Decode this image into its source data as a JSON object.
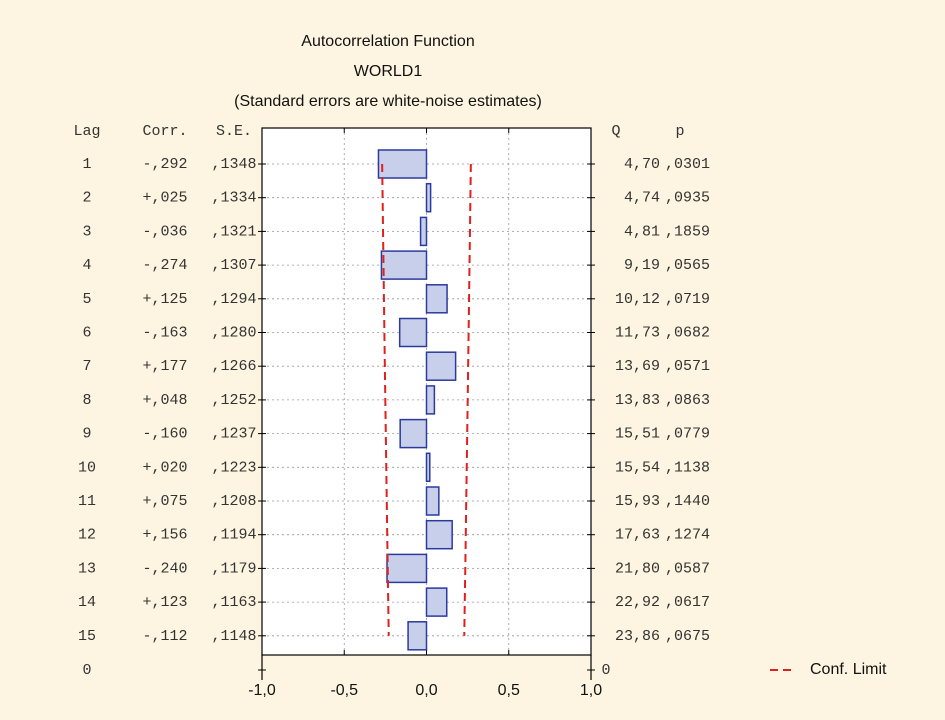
{
  "chart_data": {
    "type": "bar",
    "title": "Autocorrelation Function",
    "subtitle": "WORLD1",
    "note": "(Standard errors are white-noise estimates)",
    "headers": {
      "lag": "Lag",
      "corr": "Corr.",
      "se": "S.E.",
      "q": "Q",
      "p": "p"
    },
    "categories": [
      "1",
      "2",
      "3",
      "4",
      "5",
      "6",
      "7",
      "8",
      "9",
      "10",
      "11",
      "12",
      "13",
      "14",
      "15"
    ],
    "end_label": "0",
    "values": [
      -0.292,
      0.025,
      -0.036,
      -0.274,
      0.125,
      -0.163,
      0.177,
      0.048,
      -0.16,
      0.02,
      0.075,
      0.156,
      -0.24,
      0.123,
      -0.112
    ],
    "value_labels": [
      "-,292",
      "+,025",
      "-,036",
      "-,274",
      "+,125",
      "-,163",
      "+,177",
      "+,048",
      "-,160",
      "+,020",
      "+,075",
      "+,156",
      "-,240",
      "+,123",
      "-,112"
    ],
    "color": "#c8cfea",
    "edge_color": "#2b3a9e",
    "se": {
      "values": [
        0.1348,
        0.1334,
        0.1321,
        0.1307,
        0.1294,
        0.128,
        0.1266,
        0.1252,
        0.1237,
        0.1223,
        0.1208,
        0.1194,
        0.1179,
        0.1163,
        0.1148
      ],
      "value_labels": [
        ",1348",
        ",1334",
        ",1321",
        ",1307",
        ",1294",
        ",1280",
        ",1266",
        ",1252",
        ",1237",
        ",1223",
        ",1208",
        ",1194",
        ",1179",
        ",1163",
        ",1148"
      ]
    },
    "q": {
      "values": [
        4.7,
        4.74,
        4.81,
        9.19,
        10.12,
        11.73,
        13.69,
        13.83,
        15.51,
        15.54,
        15.93,
        17.63,
        21.8,
        22.92,
        23.86
      ],
      "value_labels": [
        "4,70",
        "4,74",
        "4,81",
        "9,19",
        "10,12",
        "11,73",
        "13,69",
        "13,83",
        "15,51",
        "15,54",
        "15,93",
        "17,63",
        "21,80",
        "22,92",
        "23,86"
      ]
    },
    "p": {
      "values": [
        0.0301,
        0.0935,
        0.1859,
        0.0565,
        0.0719,
        0.0682,
        0.0571,
        0.0863,
        0.0779,
        0.1138,
        0.144,
        0.1274,
        0.0587,
        0.0617,
        0.0675
      ],
      "value_labels": [
        ",0301",
        ",0935",
        ",1859",
        ",0565",
        ",0719",
        ",0682",
        ",0571",
        ",0863",
        ",0779",
        ",1138",
        ",1440",
        ",1274",
        ",0587",
        ",0617",
        ",0675"
      ]
    },
    "conf_limit": {
      "name": "Conf. Limit",
      "color": "#e0201c",
      "upper": [
        0.2696,
        0.2668,
        0.2642,
        0.2614,
        0.2588,
        0.256,
        0.2532,
        0.2504,
        0.2474,
        0.2446,
        0.2416,
        0.2388,
        0.2358,
        0.2326,
        0.2296
      ],
      "lower": [
        -0.2696,
        -0.2668,
        -0.2642,
        -0.2614,
        -0.2588,
        -0.256,
        -0.2532,
        -0.2504,
        -0.2474,
        -0.2446,
        -0.2416,
        -0.2388,
        -0.2358,
        -0.2326,
        -0.2296
      ]
    },
    "xlim": [
      -1,
      1
    ],
    "xticks": [
      {
        "value": -1,
        "label": "-1,0"
      },
      {
        "value": -0.5,
        "label": "-0,5"
      },
      {
        "value": 0,
        "label": "0,0"
      },
      {
        "value": 0.5,
        "label": "0,5"
      },
      {
        "value": 1,
        "label": "1,0"
      }
    ],
    "grid": true,
    "legend": "bottom-right"
  }
}
